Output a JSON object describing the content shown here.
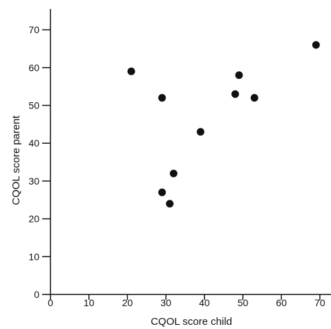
{
  "chart_data": {
    "type": "scatter",
    "title": "",
    "xlabel": "CQOL score child",
    "ylabel": "CQOL score parent",
    "xlim": [
      0,
      72
    ],
    "ylim": [
      0,
      76
    ],
    "x_ticks": [
      0,
      10,
      20,
      30,
      40,
      50,
      60,
      70
    ],
    "y_ticks": [
      0,
      10,
      20,
      30,
      40,
      50,
      60,
      70
    ],
    "grid": false,
    "legend": "none",
    "point_color": "#111111",
    "points": [
      {
        "x": 21,
        "y": 59
      },
      {
        "x": 29,
        "y": 52
      },
      {
        "x": 29,
        "y": 27
      },
      {
        "x": 31,
        "y": 24
      },
      {
        "x": 32,
        "y": 32
      },
      {
        "x": 39,
        "y": 43
      },
      {
        "x": 48,
        "y": 53
      },
      {
        "x": 49,
        "y": 58
      },
      {
        "x": 53,
        "y": 52
      },
      {
        "x": 69,
        "y": 66
      }
    ]
  }
}
